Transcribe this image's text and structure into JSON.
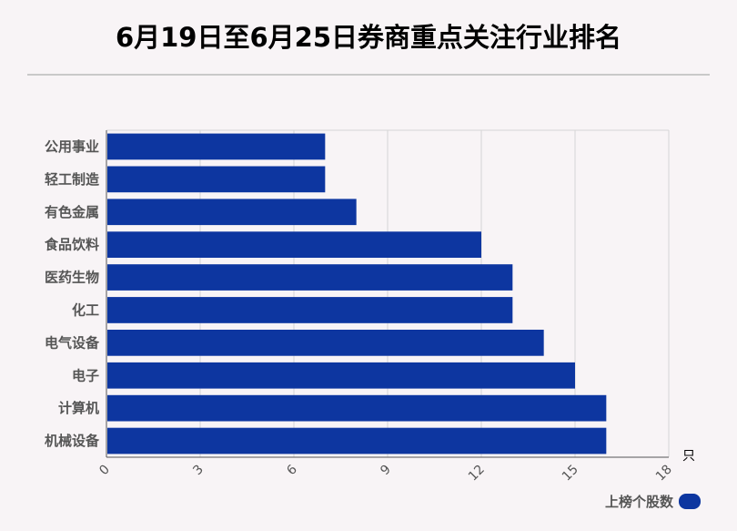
{
  "title": "6月19日至6月25日券商重点关注行业排名",
  "unit": "只",
  "legend": {
    "label": "上榜个股数",
    "position": "bottom-right"
  },
  "colors": {
    "bar": "#0d36a0",
    "background": "#f8f4f6",
    "grid": "#d5d5d5",
    "axis": "#555555"
  },
  "chart_data": {
    "type": "bar",
    "orientation": "horizontal",
    "categories": [
      "公用事业",
      "轻工制造",
      "有色金属",
      "食品饮料",
      "医药生物",
      "化工",
      "电气设备",
      "电子",
      "计算机",
      "机械设备"
    ],
    "series": [
      {
        "name": "上榜个股数",
        "values": [
          7,
          7,
          8,
          12,
          13,
          13,
          14,
          15,
          16,
          16
        ]
      }
    ],
    "xlim": [
      0,
      18
    ],
    "xticks": [
      "0",
      "3",
      "6",
      "9",
      "12",
      "15",
      "18"
    ],
    "grid": true,
    "legend": "bottom-right"
  }
}
